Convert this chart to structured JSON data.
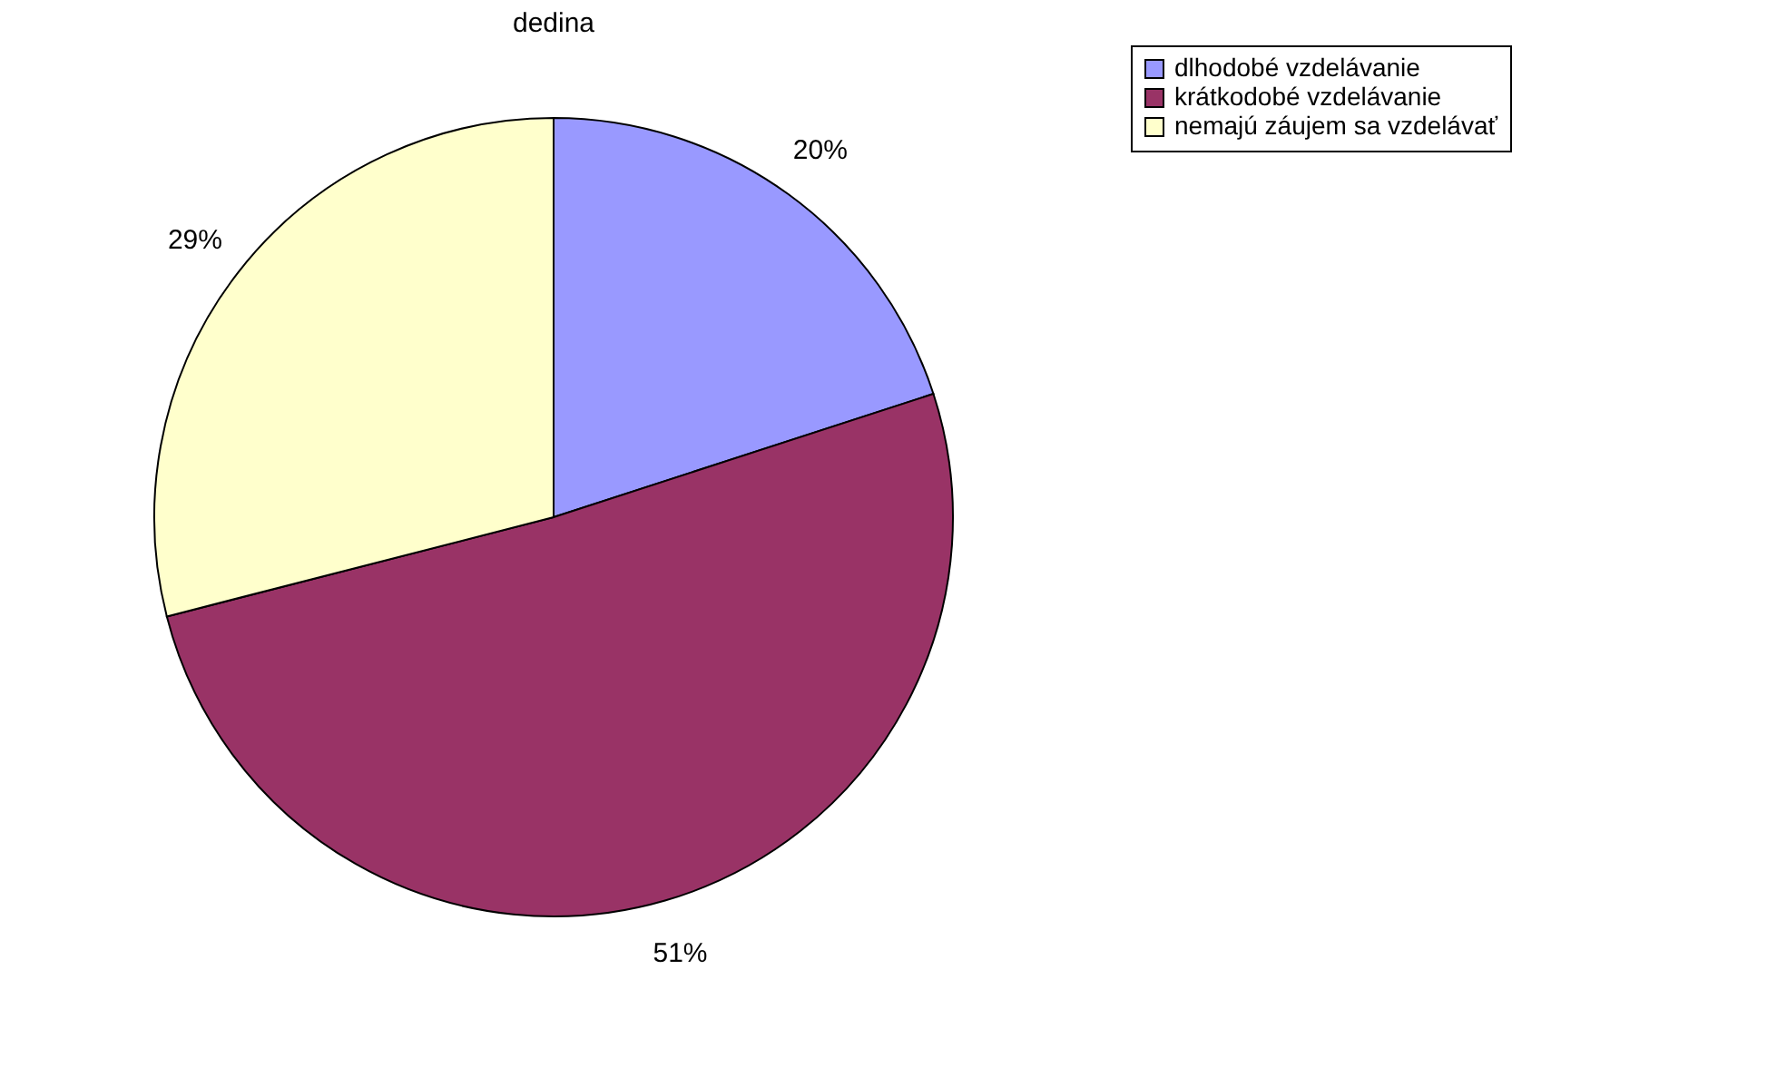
{
  "chart_data": {
    "type": "pie",
    "title": "dedina",
    "categories": [
      "dlhodobé vzdelávanie",
      "krátkodobé vzdelávanie",
      "nemajú záujem sa vzdelávať"
    ],
    "values": [
      20,
      51,
      29
    ],
    "colors": [
      "#9999ff",
      "#993366",
      "#ffffcc"
    ],
    "value_labels": [
      "20%",
      "51%",
      "29%"
    ],
    "legend": "right"
  }
}
